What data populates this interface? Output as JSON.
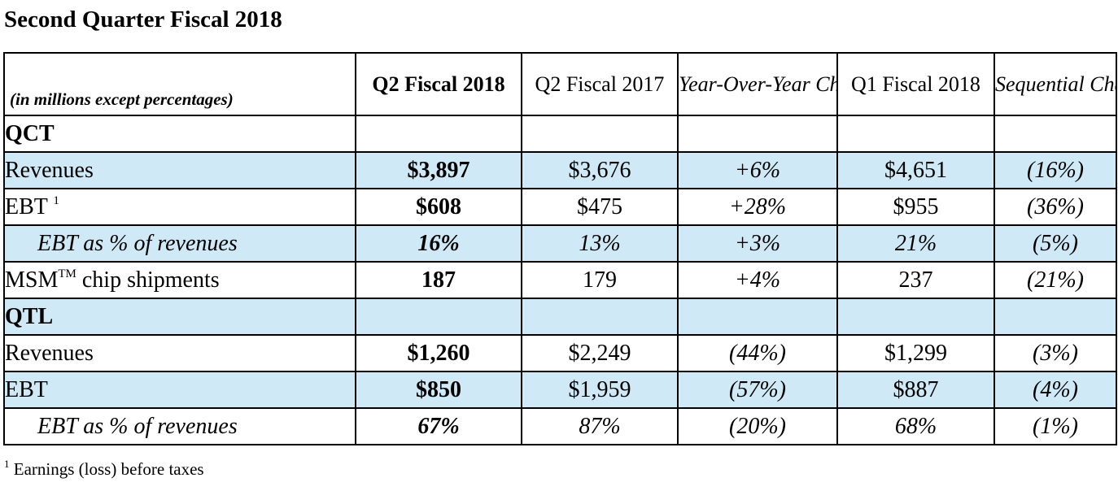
{
  "title": "Second Quarter Fiscal 2018",
  "table": {
    "units_label": "(in millions except percentages)",
    "columns": [
      "Q2 Fiscal 2018",
      "Q2 Fiscal 2017",
      "Year-Over-Year Change",
      "Q1 Fiscal 2018",
      "Sequential Change"
    ],
    "sections": {
      "qct": {
        "label": "QCT",
        "revenues": {
          "label": "Revenues",
          "values": [
            "$3,897",
            "$3,676",
            "+6%",
            "$4,651",
            "(16%)"
          ]
        },
        "ebt": {
          "label": "EBT",
          "footnote_mark": "1",
          "values": [
            "$608",
            "$475",
            "+28%",
            "$955",
            "(36%)"
          ]
        },
        "ebt_pct": {
          "label": "EBT as % of revenues",
          "values": [
            "16%",
            "13%",
            "+3%",
            "21%",
            "(5%)"
          ]
        },
        "msm": {
          "label_prefix": "MSM",
          "label_sup": "TM",
          "label_suffix": " chip shipments",
          "values": [
            "187",
            "179",
            "+4%",
            "237",
            "(21%)"
          ]
        }
      },
      "qtl": {
        "label": "QTL",
        "revenues": {
          "label": "Revenues",
          "values": [
            "$1,260",
            "$2,249",
            "(44%)",
            "$1,299",
            "(3%)"
          ]
        },
        "ebt": {
          "label": "EBT",
          "values": [
            "$850",
            "$1,959",
            "(57%)",
            "$887",
            "(4%)"
          ]
        },
        "ebt_pct": {
          "label": "EBT as % of revenues",
          "values": [
            "67%",
            "87%",
            "(20%)",
            "68%",
            "(1%)"
          ]
        }
      }
    }
  },
  "footnote": {
    "mark": "1",
    "text": "Earnings (loss) before taxes"
  }
}
